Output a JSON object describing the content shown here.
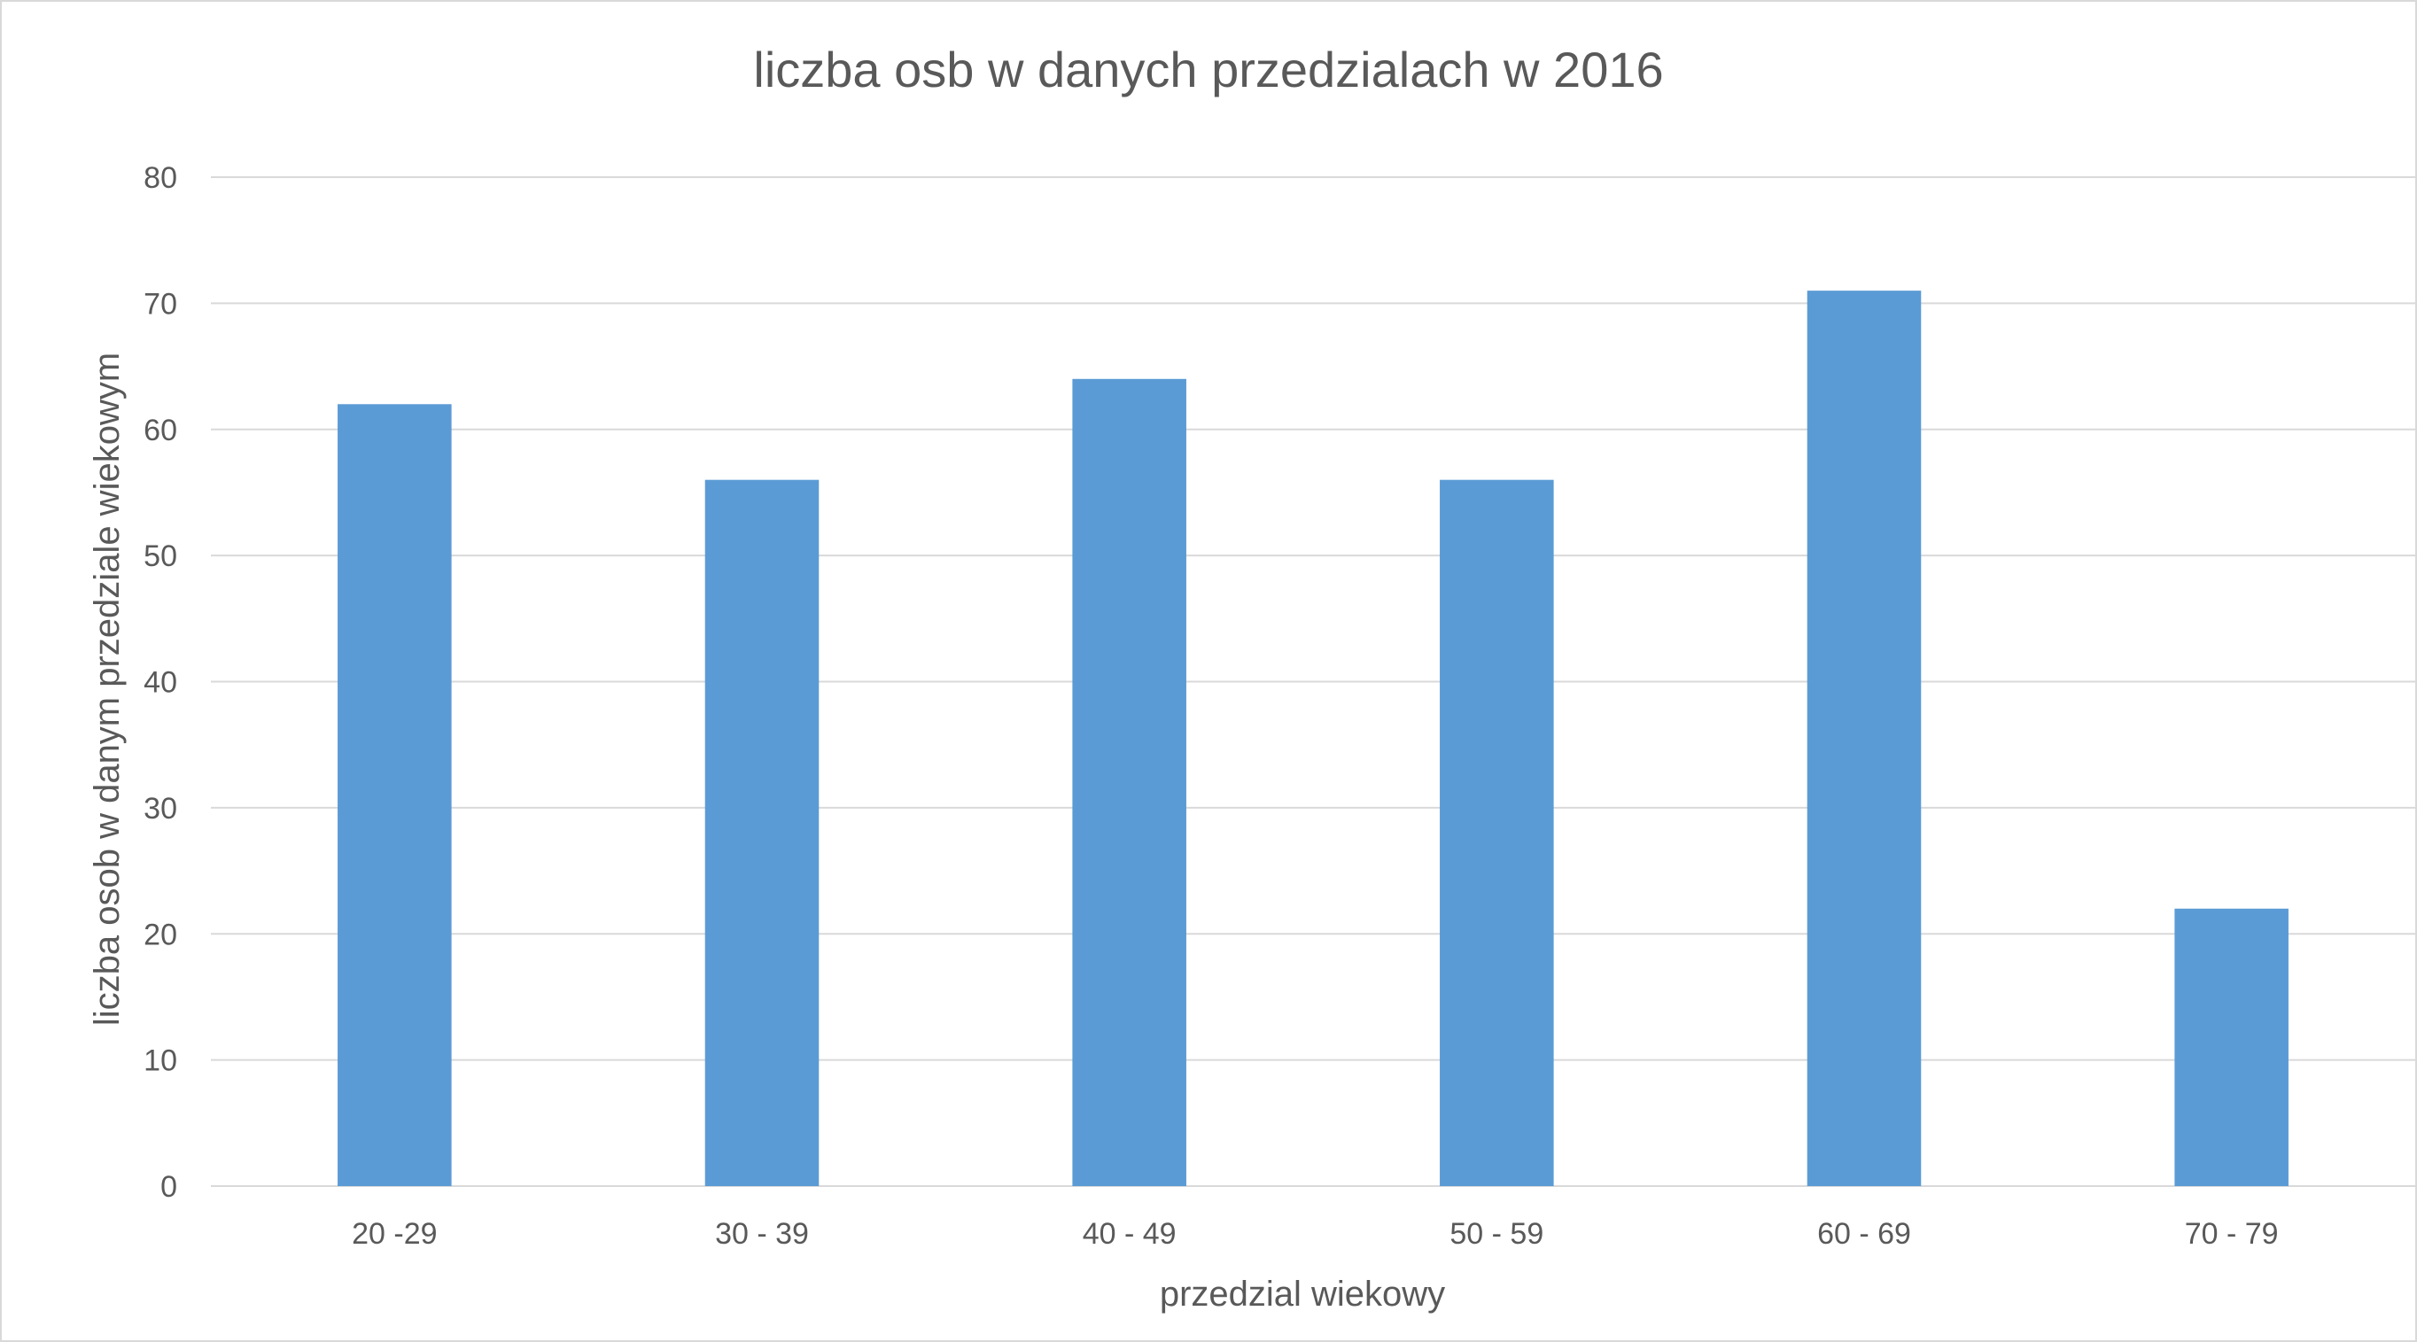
{
  "chart_data": {
    "type": "bar",
    "title": "liczba osb w danych przedzialach w 2016",
    "xlabel": "przedzial wiekowy",
    "ylabel": "liczba osob w danym przedziale wiekowym",
    "categories": [
      "20 -29",
      "30 - 39",
      "40 - 49",
      "50 - 59",
      "60 - 69",
      "70 - 79"
    ],
    "values": [
      62,
      56,
      64,
      56,
      71,
      22
    ],
    "ylim": [
      0,
      80
    ],
    "yticks": [
      0,
      10,
      20,
      30,
      40,
      50,
      60,
      70,
      80
    ],
    "grid": "horizontal",
    "legend": "none",
    "bar_color": "#5b9bd5"
  }
}
